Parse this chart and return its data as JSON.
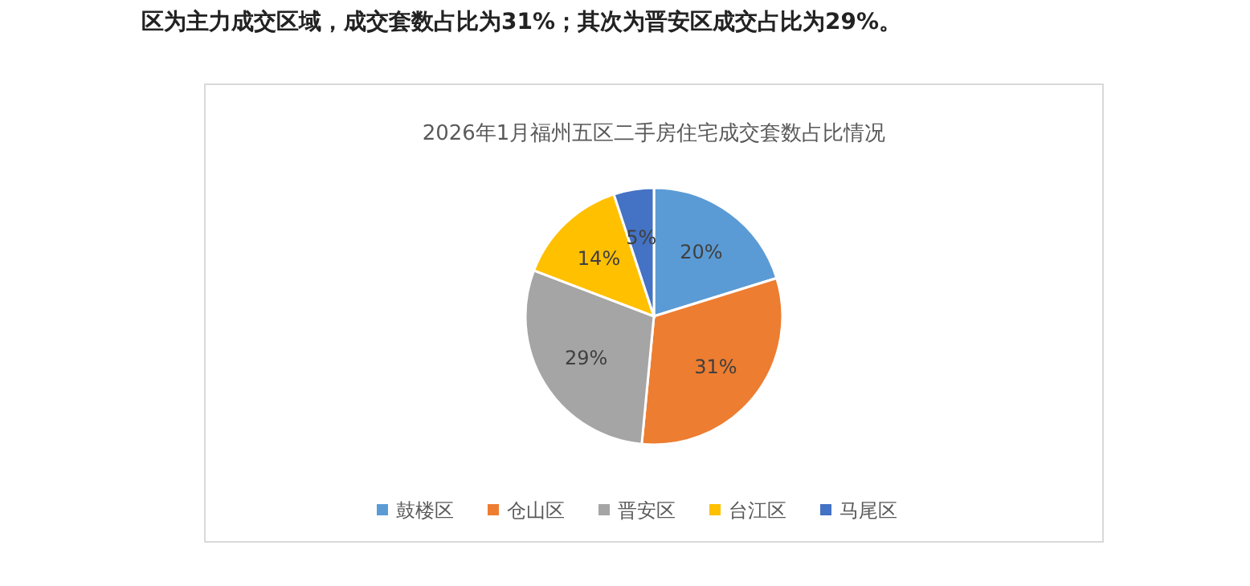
{
  "chart_data": {
    "type": "pie",
    "title": "2026年1月福州五区二手房住宅成交套数占比情况",
    "annotations": [
      "区为主力成交区域，成交套数占比为31%；其次为晋安区成交占比为29%。"
    ],
    "categories": [
      "鼓楼区",
      "仓山区",
      "晋安区",
      "台江区",
      "马尾区"
    ],
    "values": [
      20,
      31,
      29,
      14,
      5
    ],
    "colors": [
      "#5b9bd5",
      "#ed7d31",
      "#a5a5a5",
      "#ffc000",
      "#4472c4"
    ],
    "value_labels": [
      "20%",
      "31%",
      "29%",
      "14%",
      "5%"
    ],
    "legend": "bottom"
  }
}
